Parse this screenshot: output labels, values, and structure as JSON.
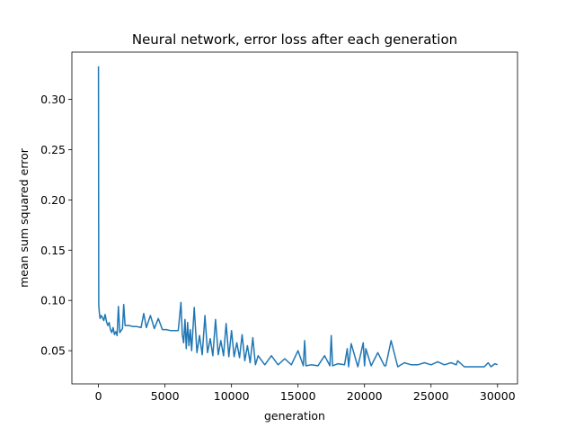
{
  "chart_data": {
    "type": "line",
    "title": "Neural network, error loss after each generation",
    "xlabel": "generation",
    "ylabel": "mean sum squared error",
    "xlim": [
      -2000,
      31500
    ],
    "ylim": [
      0.017,
      0.347
    ],
    "xticks": [
      0,
      5000,
      10000,
      15000,
      20000,
      25000,
      30000
    ],
    "yticks": [
      0.05,
      0.1,
      0.15,
      0.2,
      0.25,
      0.3
    ],
    "ytick_labels": [
      "0.05",
      "0.10",
      "0.15",
      "0.20",
      "0.25",
      "0.30"
    ],
    "grid": false,
    "legend": "none",
    "line_color": "#1f77b4",
    "series": [
      {
        "x": [
          0,
          20,
          50,
          80,
          120,
          200,
          300,
          400,
          500,
          600,
          700,
          800,
          900,
          1000,
          1100,
          1200,
          1300,
          1400,
          1500,
          1600,
          1700,
          1800,
          1900,
          2000,
          2300,
          2600,
          2900,
          3200,
          3400,
          3600,
          3900,
          4200,
          4500,
          4800,
          5100,
          5400,
          5700,
          6000,
          6200,
          6300,
          6400,
          6500,
          6600,
          6700,
          6800,
          6900,
          7000,
          7200,
          7400,
          7600,
          7800,
          8000,
          8200,
          8400,
          8600,
          8800,
          9000,
          9200,
          9400,
          9600,
          9800,
          10000,
          10200,
          10400,
          10600,
          10800,
          11000,
          11200,
          11400,
          11600,
          11800,
          12000,
          12500,
          13000,
          13500,
          14000,
          14500,
          15000,
          15400,
          15500,
          15600,
          16000,
          16500,
          17000,
          17400,
          17500,
          17600,
          18000,
          18500,
          18700,
          18800,
          19000,
          19500,
          19900,
          20000,
          20100,
          20500,
          21000,
          21500,
          21600,
          22000,
          22500,
          23000,
          23500,
          24000,
          24500,
          25000,
          25500,
          26000,
          26500,
          26900,
          27000,
          27500,
          28000,
          28500,
          29000,
          29300,
          29500,
          29800,
          30000
        ],
        "y": [
          0.333,
          0.096,
          0.09,
          0.086,
          0.082,
          0.085,
          0.083,
          0.08,
          0.086,
          0.079,
          0.075,
          0.078,
          0.071,
          0.068,
          0.073,
          0.066,
          0.069,
          0.065,
          0.094,
          0.068,
          0.07,
          0.072,
          0.096,
          0.075,
          0.075,
          0.074,
          0.074,
          0.073,
          0.087,
          0.073,
          0.085,
          0.072,
          0.082,
          0.071,
          0.071,
          0.07,
          0.07,
          0.07,
          0.098,
          0.066,
          0.058,
          0.081,
          0.052,
          0.078,
          0.055,
          0.071,
          0.05,
          0.093,
          0.048,
          0.065,
          0.046,
          0.085,
          0.048,
          0.062,
          0.045,
          0.081,
          0.046,
          0.06,
          0.045,
          0.077,
          0.044,
          0.07,
          0.044,
          0.058,
          0.043,
          0.066,
          0.04,
          0.055,
          0.038,
          0.063,
          0.036,
          0.045,
          0.036,
          0.045,
          0.036,
          0.042,
          0.036,
          0.05,
          0.035,
          0.06,
          0.035,
          0.036,
          0.035,
          0.045,
          0.035,
          0.065,
          0.035,
          0.037,
          0.036,
          0.052,
          0.034,
          0.057,
          0.034,
          0.058,
          0.035,
          0.052,
          0.035,
          0.048,
          0.035,
          0.035,
          0.06,
          0.034,
          0.038,
          0.036,
          0.036,
          0.038,
          0.036,
          0.039,
          0.036,
          0.038,
          0.036,
          0.04,
          0.034,
          0.034,
          0.034,
          0.034,
          0.038,
          0.034,
          0.037,
          0.036
        ]
      }
    ]
  }
}
